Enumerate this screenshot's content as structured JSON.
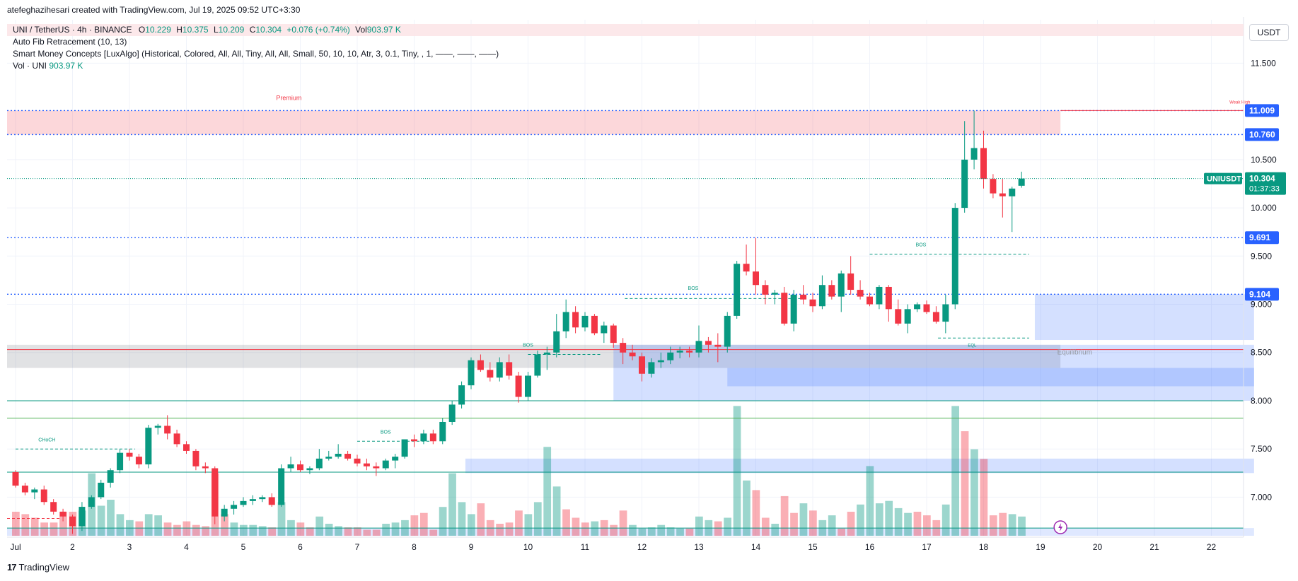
{
  "header": {
    "created_by": "atefeghazihesari created with TradingView.com, Jul 19, 2025 09:52 UTC+3:30"
  },
  "legend": {
    "symbol_line": {
      "symbol": "UNI / TetherUS · 4h · BINANCE",
      "o_label": "O",
      "o_value": "10.229",
      "h_label": "H",
      "h_value": "10.375",
      "l_label": "L",
      "l_value": "10.209",
      "c_label": "C",
      "c_value": "10.304",
      "change": "+0.076 (+0.74%)",
      "vol_label": "Vol",
      "vol_value": "903.97 K"
    },
    "indicators": [
      "Auto Fib Retracement (10, 13)",
      "Smart Money Concepts [LuxAlgo] (Historical, Colored, All, All, Tiny, All, All, Small, 50, 10, 10, Atr, 3, 0.1, Tiny, , 1, ——, ——, ——)"
    ],
    "vol_line": {
      "label": "Vol · UNI",
      "value": "903.97 K"
    }
  },
  "currency_button": "USDT",
  "brand": "TradingView",
  "chart_data": {
    "type": "candlestick",
    "symbol": "UNIUSDT",
    "interval": "4h",
    "ylim": [
      6.6,
      11.95
    ],
    "y_ticks": [
      "11.500",
      "10.500",
      "10.000",
      "9.500",
      "9.000",
      "8.500",
      "8.000",
      "7.500",
      "7.000"
    ],
    "x_ticks": [
      "Jul",
      "2",
      "3",
      "4",
      "5",
      "6",
      "7",
      "8",
      "9",
      "10",
      "11",
      "12",
      "13",
      "14",
      "15",
      "16",
      "17",
      "18",
      "19",
      "20",
      "21",
      "22"
    ],
    "price_labels": [
      {
        "text": "11.009",
        "value": 11.009,
        "color": "#2962ff"
      },
      {
        "text": "10.760",
        "value": 10.76,
        "color": "#2962ff"
      },
      {
        "text": "9.691",
        "value": 9.691,
        "color": "#2962ff"
      },
      {
        "text": "9.104",
        "value": 9.104,
        "color": "#2962ff"
      }
    ],
    "last_price": {
      "symbol_label": "UNIUSDT",
      "price": "10.304",
      "countdown": "01:37:33",
      "value": 10.304,
      "color": "#089981"
    },
    "annotations": [
      {
        "text": "Premium",
        "color": "#f23645"
      },
      {
        "text": "Equilibrium",
        "color": "#9598a1"
      },
      {
        "text": "Weak High",
        "color": "#f23645"
      },
      {
        "text": "CHoCH",
        "color": "#089981"
      },
      {
        "text": "BOS",
        "color": "#089981"
      },
      {
        "text": "BOS",
        "color": "#089981"
      },
      {
        "text": "BOS",
        "color": "#089981"
      },
      {
        "text": "BOS",
        "color": "#089981"
      },
      {
        "text": "EQL",
        "color": "#089981"
      }
    ],
    "zones": [
      {
        "name": "premium",
        "low": 10.76,
        "high": 11.009,
        "day_start": 0,
        "day_end": 18.35
      },
      {
        "name": "equilibrium",
        "low": 8.34,
        "high": 8.58,
        "day_start": 0,
        "day_end": 18.35
      },
      {
        "name": "ob-1",
        "low": 8.63,
        "high": 9.104,
        "day_start": 17.9,
        "day_end": 21.75
      },
      {
        "name": "ob-2",
        "low": 8.0,
        "high": 8.58,
        "day_start": 10.5,
        "day_end": 21.75
      },
      {
        "name": "ob-3",
        "low": 8.15,
        "high": 8.34,
        "day_start": 12.5,
        "day_end": 21.75
      },
      {
        "name": "ob-4",
        "low": 7.25,
        "high": 7.4,
        "day_start": 7.9,
        "day_end": 21.75
      },
      {
        "name": "ob-5",
        "low": 6.6,
        "high": 6.68,
        "day_start": 0,
        "day_end": 21.75
      }
    ],
    "candles": [
      [
        7.26,
        7.28,
        7.1,
        7.12
      ],
      [
        7.12,
        7.15,
        7.02,
        7.05
      ],
      [
        7.05,
        7.1,
        6.98,
        7.08
      ],
      [
        7.08,
        7.12,
        6.92,
        6.95
      ],
      [
        6.95,
        6.98,
        6.82,
        6.85
      ],
      [
        6.85,
        6.88,
        6.75,
        6.8
      ],
      [
        6.8,
        6.82,
        6.62,
        6.7
      ],
      [
        6.7,
        6.95,
        6.65,
        6.9
      ],
      [
        6.9,
        7.02,
        6.88,
        7.0
      ],
      [
        7.0,
        7.18,
        6.98,
        7.15
      ],
      [
        7.15,
        7.3,
        7.1,
        7.28
      ],
      [
        7.28,
        7.5,
        7.25,
        7.46
      ],
      [
        7.46,
        7.5,
        7.38,
        7.42
      ],
      [
        7.42,
        7.45,
        7.3,
        7.34
      ],
      [
        7.34,
        7.75,
        7.3,
        7.72
      ],
      [
        7.72,
        7.76,
        7.65,
        7.74
      ],
      [
        7.74,
        7.85,
        7.6,
        7.66
      ],
      [
        7.66,
        7.7,
        7.52,
        7.55
      ],
      [
        7.55,
        7.58,
        7.45,
        7.48
      ],
      [
        7.48,
        7.5,
        7.28,
        7.32
      ],
      [
        7.32,
        7.36,
        7.25,
        7.3
      ],
      [
        7.3,
        7.32,
        6.72,
        6.8
      ],
      [
        6.8,
        6.92,
        6.75,
        6.88
      ],
      [
        6.88,
        6.96,
        6.82,
        6.92
      ],
      [
        6.92,
        7.0,
        6.9,
        6.96
      ],
      [
        6.96,
        7.02,
        6.92,
        6.98
      ],
      [
        6.98,
        7.02,
        6.95,
        7.0
      ],
      [
        7.0,
        7.04,
        6.9,
        6.92
      ],
      [
        6.92,
        7.34,
        6.9,
        7.3
      ],
      [
        7.3,
        7.42,
        7.26,
        7.34
      ],
      [
        7.34,
        7.38,
        7.26,
        7.28
      ],
      [
        7.28,
        7.32,
        7.24,
        7.3
      ],
      [
        7.3,
        7.5,
        7.28,
        7.4
      ],
      [
        7.4,
        7.48,
        7.38,
        7.42
      ],
      [
        7.42,
        7.55,
        7.4,
        7.45
      ],
      [
        7.45,
        7.48,
        7.38,
        7.4
      ],
      [
        7.4,
        7.44,
        7.32,
        7.35
      ],
      [
        7.35,
        7.4,
        7.28,
        7.32
      ],
      [
        7.32,
        7.36,
        7.22,
        7.3
      ],
      [
        7.3,
        7.4,
        7.28,
        7.38
      ],
      [
        7.38,
        7.45,
        7.3,
        7.42
      ],
      [
        7.42,
        7.55,
        7.4,
        7.6
      ],
      [
        7.6,
        7.65,
        7.52,
        7.58
      ],
      [
        7.58,
        7.7,
        7.55,
        7.66
      ],
      [
        7.66,
        7.7,
        7.55,
        7.58
      ],
      [
        7.58,
        7.82,
        7.55,
        7.78
      ],
      [
        7.78,
        8.0,
        7.75,
        7.96
      ],
      [
        7.96,
        8.2,
        7.92,
        8.16
      ],
      [
        8.16,
        8.45,
        8.12,
        8.42
      ],
      [
        8.42,
        8.48,
        8.3,
        8.32
      ],
      [
        8.32,
        8.4,
        8.2,
        8.24
      ],
      [
        8.24,
        8.45,
        8.2,
        8.4
      ],
      [
        8.4,
        8.48,
        8.22,
        8.26
      ],
      [
        8.26,
        8.3,
        7.98,
        8.04
      ],
      [
        8.04,
        8.3,
        8.0,
        8.26
      ],
      [
        8.26,
        8.52,
        8.24,
        8.48
      ],
      [
        8.48,
        8.56,
        8.32,
        8.5
      ],
      [
        8.5,
        8.9,
        8.45,
        8.72
      ],
      [
        8.72,
        9.05,
        8.65,
        8.92
      ],
      [
        8.92,
        8.98,
        8.7,
        8.76
      ],
      [
        8.76,
        8.92,
        8.72,
        8.88
      ],
      [
        8.88,
        8.9,
        8.68,
        8.7
      ],
      [
        8.7,
        8.82,
        8.6,
        8.78
      ],
      [
        8.78,
        8.8,
        8.55,
        8.6
      ],
      [
        8.6,
        8.65,
        8.38,
        8.5
      ],
      [
        8.5,
        8.58,
        8.42,
        8.46
      ],
      [
        8.46,
        8.5,
        8.2,
        8.28
      ],
      [
        8.28,
        8.44,
        8.24,
        8.4
      ],
      [
        8.4,
        8.5,
        8.34,
        8.42
      ],
      [
        8.42,
        8.56,
        8.38,
        8.5
      ],
      [
        8.5,
        8.56,
        8.44,
        8.52
      ],
      [
        8.52,
        8.56,
        8.45,
        8.5
      ],
      [
        8.5,
        8.78,
        8.45,
        8.62
      ],
      [
        8.62,
        8.66,
        8.5,
        8.58
      ],
      [
        8.58,
        8.7,
        8.4,
        8.56
      ],
      [
        8.56,
        8.92,
        8.5,
        8.88
      ],
      [
        8.88,
        9.45,
        8.85,
        9.42
      ],
      [
        9.42,
        9.62,
        9.3,
        9.34
      ],
      [
        9.34,
        9.69,
        9.1,
        9.2
      ],
      [
        9.2,
        9.25,
        9.0,
        9.1
      ],
      [
        9.1,
        9.15,
        9.0,
        9.12
      ],
      [
        9.12,
        9.18,
        8.78,
        8.8
      ],
      [
        8.8,
        9.15,
        8.72,
        9.1
      ],
      [
        9.1,
        9.2,
        9.0,
        9.05
      ],
      [
        9.05,
        9.12,
        8.92,
        8.98
      ],
      [
        8.98,
        9.3,
        8.95,
        9.2
      ],
      [
        9.2,
        9.25,
        9.05,
        9.08
      ],
      [
        9.08,
        9.35,
        8.92,
        9.32
      ],
      [
        9.32,
        9.5,
        9.1,
        9.15
      ],
      [
        9.15,
        9.25,
        9.05,
        9.08
      ],
      [
        9.08,
        9.12,
        8.98,
        9.0
      ],
      [
        9.0,
        9.2,
        8.95,
        9.18
      ],
      [
        9.18,
        9.2,
        8.82,
        8.95
      ],
      [
        8.95,
        9.05,
        8.78,
        8.8
      ],
      [
        8.8,
        9.0,
        8.7,
        8.95
      ],
      [
        8.95,
        9.02,
        8.92,
        9.0
      ],
      [
        9.0,
        9.04,
        8.9,
        8.92
      ],
      [
        8.92,
        8.98,
        8.8,
        8.82
      ],
      [
        8.82,
        9.1,
        8.7,
        9.0
      ],
      [
        9.0,
        10.05,
        8.95,
        10.0
      ],
      [
        10.0,
        10.9,
        9.95,
        10.5
      ],
      [
        10.5,
        11.009,
        10.4,
        10.62
      ],
      [
        10.62,
        10.8,
        10.2,
        10.3
      ],
      [
        10.3,
        10.35,
        10.1,
        10.15
      ],
      [
        10.15,
        10.3,
        9.9,
        10.12
      ],
      [
        10.12,
        10.22,
        9.75,
        10.2
      ],
      [
        10.229,
        10.375,
        10.209,
        10.304
      ]
    ],
    "volume": [
      [
        1.0,
        "d"
      ],
      [
        0.9,
        "d"
      ],
      [
        0.75,
        "d"
      ],
      [
        0.55,
        "d"
      ],
      [
        0.55,
        "d"
      ],
      [
        1.0,
        "d"
      ],
      [
        1.0,
        "d"
      ],
      [
        1.05,
        "u"
      ],
      [
        2.6,
        "u"
      ],
      [
        1.25,
        "u"
      ],
      [
        1.5,
        "u"
      ],
      [
        0.9,
        "u"
      ],
      [
        0.65,
        "u"
      ],
      [
        0.6,
        "d"
      ],
      [
        0.9,
        "u"
      ],
      [
        0.85,
        "u"
      ],
      [
        0.55,
        "d"
      ],
      [
        0.45,
        "d"
      ],
      [
        0.6,
        "d"
      ],
      [
        0.45,
        "d"
      ],
      [
        0.4,
        "d"
      ],
      [
        2.6,
        "d"
      ],
      [
        0.9,
        "d"
      ],
      [
        0.55,
        "u"
      ],
      [
        0.45,
        "u"
      ],
      [
        0.45,
        "u"
      ],
      [
        0.4,
        "u"
      ],
      [
        0.35,
        "d"
      ],
      [
        1.4,
        "u"
      ],
      [
        0.65,
        "u"
      ],
      [
        0.55,
        "d"
      ],
      [
        0.35,
        "d"
      ],
      [
        0.8,
        "u"
      ],
      [
        0.5,
        "u"
      ],
      [
        0.4,
        "u"
      ],
      [
        0.35,
        "d"
      ],
      [
        0.35,
        "d"
      ],
      [
        0.25,
        "d"
      ],
      [
        0.25,
        "d"
      ],
      [
        0.5,
        "u"
      ],
      [
        0.55,
        "u"
      ],
      [
        0.65,
        "u"
      ],
      [
        0.85,
        "d"
      ],
      [
        0.95,
        "d"
      ],
      [
        0.25,
        "d"
      ],
      [
        1.2,
        "u"
      ],
      [
        2.6,
        "u"
      ],
      [
        1.4,
        "u"
      ],
      [
        0.9,
        "u"
      ],
      [
        1.35,
        "d"
      ],
      [
        0.65,
        "d"
      ],
      [
        0.5,
        "d"
      ],
      [
        0.55,
        "d"
      ],
      [
        1.05,
        "d"
      ],
      [
        0.9,
        "u"
      ],
      [
        1.4,
        "u"
      ],
      [
        3.7,
        "u"
      ],
      [
        2.05,
        "u"
      ],
      [
        1.1,
        "d"
      ],
      [
        0.75,
        "d"
      ],
      [
        0.55,
        "d"
      ],
      [
        0.6,
        "u"
      ],
      [
        0.65,
        "d"
      ],
      [
        0.45,
        "d"
      ],
      [
        1.05,
        "d"
      ],
      [
        0.45,
        "u"
      ],
      [
        0.3,
        "u"
      ],
      [
        0.35,
        "u"
      ],
      [
        0.45,
        "u"
      ],
      [
        0.35,
        "u"
      ],
      [
        0.3,
        "u"
      ],
      [
        0.3,
        "d"
      ],
      [
        0.8,
        "u"
      ],
      [
        0.65,
        "u"
      ],
      [
        0.6,
        "d"
      ],
      [
        0.75,
        "u"
      ],
      [
        5.4,
        "u"
      ],
      [
        2.3,
        "u"
      ],
      [
        1.9,
        "d"
      ],
      [
        0.75,
        "d"
      ],
      [
        0.5,
        "u"
      ],
      [
        1.65,
        "d"
      ],
      [
        0.95,
        "d"
      ],
      [
        1.35,
        "u"
      ],
      [
        1.05,
        "d"
      ],
      [
        0.65,
        "u"
      ],
      [
        0.85,
        "u"
      ],
      [
        0.3,
        "d"
      ],
      [
        1.0,
        "d"
      ],
      [
        1.3,
        "u"
      ],
      [
        2.9,
        "u"
      ],
      [
        1.35,
        "u"
      ],
      [
        1.45,
        "u"
      ],
      [
        1.15,
        "u"
      ],
      [
        0.95,
        "u"
      ],
      [
        1.0,
        "d"
      ],
      [
        0.85,
        "d"
      ],
      [
        0.65,
        "d"
      ],
      [
        1.3,
        "u"
      ],
      [
        5.4,
        "u"
      ],
      [
        4.35,
        "d"
      ],
      [
        3.6,
        "u"
      ],
      [
        3.2,
        "d"
      ],
      [
        0.85,
        "d"
      ],
      [
        0.95,
        "d"
      ],
      [
        0.9,
        "u"
      ],
      [
        0.8,
        "u"
      ]
    ]
  }
}
